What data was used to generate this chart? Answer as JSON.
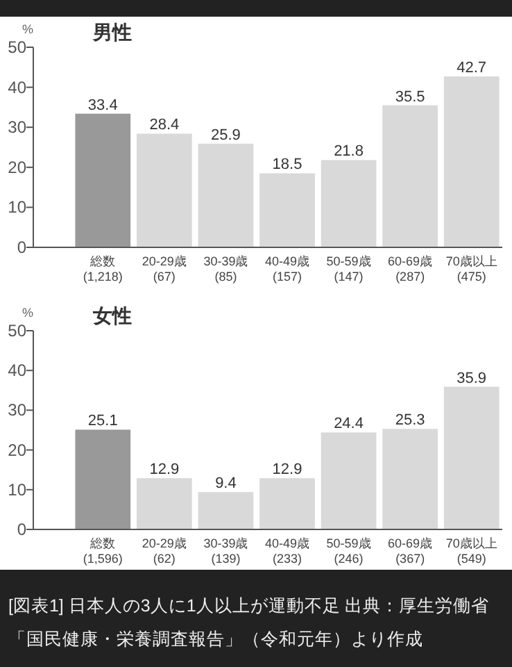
{
  "chart_data": [
    {
      "type": "bar",
      "title": "男性",
      "ylabel": "%",
      "categories": [
        "総数\n(1,218)",
        "20-29歳\n(67)",
        "30-39歳\n(85)",
        "40-49歳\n(157)",
        "50-59歳\n(147)",
        "60-69歳\n(287)",
        "70歳以上\n(475)"
      ],
      "values": [
        33.4,
        28.4,
        25.9,
        18.5,
        21.8,
        35.5,
        42.7
      ],
      "colors": [
        "#999999",
        "#d9d9d9",
        "#d9d9d9",
        "#d9d9d9",
        "#d9d9d9",
        "#d9d9d9",
        "#d9d9d9"
      ],
      "ylim": [
        0,
        50
      ],
      "yticks": [
        0,
        10,
        20,
        30,
        40,
        50
      ],
      "data_labels": true
    },
    {
      "type": "bar",
      "title": "女性",
      "ylabel": "%",
      "categories": [
        "総数\n(1,596)",
        "20-29歳\n(62)",
        "30-39歳\n(139)",
        "40-49歳\n(233)",
        "50-59歳\n(246)",
        "60-69歳\n(367)",
        "70歳以上\n(549)"
      ],
      "values": [
        25.1,
        12.9,
        9.4,
        12.9,
        24.4,
        25.3,
        35.9
      ],
      "colors": [
        "#999999",
        "#d9d9d9",
        "#d9d9d9",
        "#d9d9d9",
        "#d9d9d9",
        "#d9d9d9",
        "#d9d9d9"
      ],
      "ylim": [
        0,
        50
      ],
      "yticks": [
        0,
        10,
        20,
        30,
        40,
        50
      ],
      "data_labels": true,
      "annotations": [
        "[図表1] 日本人の3人に1人以上が運動不足 出典：厚生労働省",
        "「国民健康・栄養調査報告」（令和元年）より作成"
      ]
    }
  ]
}
